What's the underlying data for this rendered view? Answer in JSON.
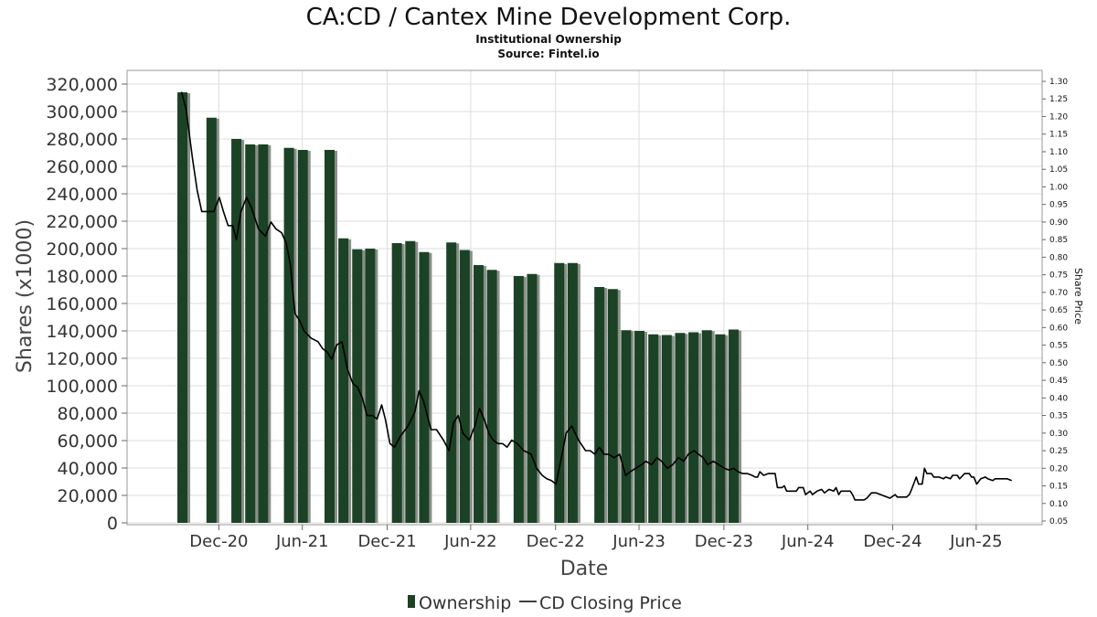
{
  "title": "CA:CD / Cantex Mine Development Corp.",
  "subtitle": "Institutional Ownership",
  "source": "Source: Fintel.io",
  "colors": {
    "bar": "#1c4226",
    "bar_shadow": "#8a8f89",
    "line": "#000000",
    "grid": "#dddddd"
  },
  "chart_data": {
    "type": "bar",
    "xlabel": "Date",
    "ylabel": "Shares (x1000)",
    "y2label": "Share Price",
    "ylim": [
      0,
      320000
    ],
    "y2lim": [
      0.05,
      1.3
    ],
    "xlim": [
      "2020-06-15",
      "2025-11-20"
    ],
    "yticks": [
      "0",
      "20,000",
      "40,000",
      "60,000",
      "80,000",
      "100,000",
      "120,000",
      "140,000",
      "160,000",
      "180,000",
      "200,000",
      "220,000",
      "240,000",
      "260,000",
      "280,000",
      "300,000",
      "320,000"
    ],
    "y2ticks": [
      "0.05",
      "0.10",
      "0.15",
      "0.20",
      "0.25",
      "0.30",
      "0.35",
      "0.40",
      "0.45",
      "0.50",
      "0.55",
      "0.60",
      "0.65",
      "0.70",
      "0.75",
      "0.80",
      "0.85",
      "0.90",
      "0.95",
      "1.00",
      "1.05",
      "1.10",
      "1.15",
      "1.20",
      "1.25",
      "1.30"
    ],
    "xticks": [
      {
        "label": "Dec-20",
        "date": "2020-12-31"
      },
      {
        "label": "Jun-21",
        "date": "2021-06-30"
      },
      {
        "label": "Dec-21",
        "date": "2021-12-31"
      },
      {
        "label": "Jun-22",
        "date": "2022-06-30"
      },
      {
        "label": "Dec-22",
        "date": "2022-12-31"
      },
      {
        "label": "Jun-23",
        "date": "2023-06-30"
      },
      {
        "label": "Dec-23",
        "date": "2023-12-31"
      },
      {
        "label": "Jun-24",
        "date": "2024-06-30"
      },
      {
        "label": "Dec-24",
        "date": "2024-12-31"
      },
      {
        "label": "Jun-25",
        "date": "2025-06-30"
      }
    ],
    "grid": true,
    "series": [
      {
        "name": "Ownership",
        "type": "bar",
        "points": [
          {
            "date": "2020-10-13",
            "value": 314000
          },
          {
            "date": "2020-12-15",
            "value": 295500
          },
          {
            "date": "2021-02-07",
            "value": 280000
          },
          {
            "date": "2021-03-09",
            "value": 276000
          },
          {
            "date": "2021-04-06",
            "value": 276000
          },
          {
            "date": "2021-06-01",
            "value": 273500
          },
          {
            "date": "2021-07-01",
            "value": 272000
          },
          {
            "date": "2021-08-28",
            "value": 272000
          },
          {
            "date": "2021-09-27",
            "value": 207500
          },
          {
            "date": "2021-10-27",
            "value": 199500
          },
          {
            "date": "2021-11-24",
            "value": 200000
          },
          {
            "date": "2022-01-21",
            "value": 204000
          },
          {
            "date": "2022-02-19",
            "value": 205500
          },
          {
            "date": "2022-03-21",
            "value": 197500
          },
          {
            "date": "2022-05-19",
            "value": 204500
          },
          {
            "date": "2022-06-17",
            "value": 199000
          },
          {
            "date": "2022-07-17",
            "value": 188000
          },
          {
            "date": "2022-08-15",
            "value": 184500
          },
          {
            "date": "2022-10-12",
            "value": 180000
          },
          {
            "date": "2022-11-10",
            "value": 181500
          },
          {
            "date": "2023-01-08",
            "value": 189500
          },
          {
            "date": "2023-02-06",
            "value": 189500
          },
          {
            "date": "2023-04-05",
            "value": 172000
          },
          {
            "date": "2023-05-04",
            "value": 170500
          },
          {
            "date": "2023-06-02",
            "value": 140500
          },
          {
            "date": "2023-07-01",
            "value": 140000
          },
          {
            "date": "2023-07-31",
            "value": 137500
          },
          {
            "date": "2023-08-29",
            "value": 137000
          },
          {
            "date": "2023-09-27",
            "value": 138500
          },
          {
            "date": "2023-10-26",
            "value": 139000
          },
          {
            "date": "2023-11-24",
            "value": 140500
          },
          {
            "date": "2023-12-23",
            "value": 137500
          },
          {
            "date": "2024-01-21",
            "value": 141000
          }
        ]
      },
      {
        "name": "CD Closing Price",
        "type": "line",
        "points": [
          [
            "2020-10-11",
            1.27
          ],
          [
            "2020-10-21",
            1.22
          ],
          [
            "2020-11-04",
            1.08
          ],
          [
            "2020-11-14",
            0.99
          ],
          [
            "2020-11-24",
            0.93
          ],
          [
            "2020-12-05",
            0.93
          ],
          [
            "2020-12-20",
            0.93
          ],
          [
            "2021-01-01",
            0.97
          ],
          [
            "2021-01-10",
            0.93
          ],
          [
            "2021-01-20",
            0.89
          ],
          [
            "2021-01-30",
            0.89
          ],
          [
            "2021-02-07",
            0.85
          ],
          [
            "2021-02-17",
            0.93
          ],
          [
            "2021-03-01",
            0.97
          ],
          [
            "2021-03-12",
            0.94
          ],
          [
            "2021-03-27",
            0.88
          ],
          [
            "2021-04-11",
            0.86
          ],
          [
            "2021-04-23",
            0.9
          ],
          [
            "2021-05-04",
            0.88
          ],
          [
            "2021-05-16",
            0.87
          ],
          [
            "2021-05-26",
            0.84
          ],
          [
            "2021-06-04",
            0.78
          ],
          [
            "2021-06-14",
            0.64
          ],
          [
            "2021-06-24",
            0.62
          ],
          [
            "2021-07-04",
            0.59
          ],
          [
            "2021-07-19",
            0.57
          ],
          [
            "2021-08-03",
            0.56
          ],
          [
            "2021-08-13",
            0.54
          ],
          [
            "2021-08-23",
            0.53
          ],
          [
            "2021-09-02",
            0.51
          ],
          [
            "2021-09-12",
            0.55
          ],
          [
            "2021-09-24",
            0.56
          ],
          [
            "2021-10-06",
            0.48
          ],
          [
            "2021-10-18",
            0.44
          ],
          [
            "2021-10-28",
            0.43
          ],
          [
            "2021-11-07",
            0.4
          ],
          [
            "2021-11-17",
            0.35
          ],
          [
            "2021-11-29",
            0.35
          ],
          [
            "2021-12-09",
            0.34
          ],
          [
            "2021-12-19",
            0.38
          ],
          [
            "2021-12-27",
            0.34
          ],
          [
            "2022-01-06",
            0.27
          ],
          [
            "2022-01-16",
            0.26
          ],
          [
            "2022-01-28",
            0.29
          ],
          [
            "2022-02-14",
            0.32
          ],
          [
            "2022-03-01",
            0.36
          ],
          [
            "2022-03-10",
            0.42
          ],
          [
            "2022-03-20",
            0.39
          ],
          [
            "2022-04-05",
            0.31
          ],
          [
            "2022-04-17",
            0.31
          ],
          [
            "2022-05-02",
            0.28
          ],
          [
            "2022-05-14",
            0.25
          ],
          [
            "2022-05-24",
            0.33
          ],
          [
            "2022-06-03",
            0.35
          ],
          [
            "2022-06-13",
            0.3
          ],
          [
            "2022-06-27",
            0.28
          ],
          [
            "2022-07-09",
            0.32
          ],
          [
            "2022-07-19",
            0.37
          ],
          [
            "2022-07-29",
            0.34
          ],
          [
            "2022-08-08",
            0.3
          ],
          [
            "2022-08-18",
            0.28
          ],
          [
            "2022-08-28",
            0.27
          ],
          [
            "2022-09-07",
            0.27
          ],
          [
            "2022-09-17",
            0.26
          ],
          [
            "2022-09-27",
            0.28
          ],
          [
            "2022-10-09",
            0.27
          ],
          [
            "2022-10-23",
            0.25
          ],
          [
            "2022-11-08",
            0.24
          ],
          [
            "2022-11-20",
            0.2
          ],
          [
            "2022-12-02",
            0.18
          ],
          [
            "2022-12-12",
            0.17
          ],
          [
            "2022-12-22",
            0.165
          ],
          [
            "2023-01-01",
            0.155
          ],
          [
            "2023-01-11",
            0.22
          ],
          [
            "2023-01-23",
            0.3
          ],
          [
            "2023-02-04",
            0.32
          ],
          [
            "2023-02-19",
            0.28
          ],
          [
            "2023-03-06",
            0.25
          ],
          [
            "2023-03-16",
            0.25
          ],
          [
            "2023-03-26",
            0.24
          ],
          [
            "2023-04-05",
            0.26
          ],
          [
            "2023-04-15",
            0.24
          ],
          [
            "2023-04-25",
            0.24
          ],
          [
            "2023-05-07",
            0.23
          ],
          [
            "2023-05-19",
            0.24
          ],
          [
            "2023-06-01",
            0.18
          ],
          [
            "2023-06-11",
            0.19
          ],
          [
            "2023-06-23",
            0.2
          ],
          [
            "2023-07-05",
            0.21
          ],
          [
            "2023-07-15",
            0.22
          ],
          [
            "2023-07-27",
            0.21
          ],
          [
            "2023-08-08",
            0.23
          ],
          [
            "2023-08-18",
            0.22
          ],
          [
            "2023-08-30",
            0.2
          ],
          [
            "2023-09-11",
            0.21
          ],
          [
            "2023-09-23",
            0.23
          ],
          [
            "2023-10-05",
            0.22
          ],
          [
            "2023-10-15",
            0.24
          ],
          [
            "2023-10-27",
            0.25
          ],
          [
            "2023-11-06",
            0.24
          ],
          [
            "2023-11-16",
            0.23
          ],
          [
            "2023-11-26",
            0.21
          ],
          [
            "2023-12-08",
            0.22
          ],
          [
            "2023-12-20",
            0.21
          ],
          [
            "2024-01-01",
            0.2
          ],
          [
            "2024-01-11",
            0.195
          ],
          [
            "2024-01-21",
            0.2
          ],
          [
            "2024-01-31",
            0.19
          ],
          [
            "2024-02-10",
            0.185
          ],
          [
            "2024-02-20",
            0.185
          ],
          [
            "2024-03-01",
            0.18
          ],
          [
            "2024-03-08",
            0.175
          ],
          [
            "2024-03-13",
            0.175
          ],
          [
            "2024-03-18",
            0.19
          ],
          [
            "2024-03-26",
            0.18
          ],
          [
            "2024-04-05",
            0.185
          ],
          [
            "2024-04-15",
            0.185
          ],
          [
            "2024-04-20",
            0.185
          ],
          [
            "2024-04-25",
            0.145
          ],
          [
            "2024-05-05",
            0.145
          ],
          [
            "2024-05-10",
            0.15
          ],
          [
            "2024-05-15",
            0.135
          ],
          [
            "2024-05-25",
            0.135
          ],
          [
            "2024-06-05",
            0.135
          ],
          [
            "2024-06-10",
            0.145
          ],
          [
            "2024-06-20",
            0.145
          ],
          [
            "2024-06-25",
            0.125
          ],
          [
            "2024-07-05",
            0.135
          ],
          [
            "2024-07-10",
            0.125
          ],
          [
            "2024-07-20",
            0.135
          ],
          [
            "2024-07-30",
            0.14
          ],
          [
            "2024-08-05",
            0.13
          ],
          [
            "2024-08-15",
            0.14
          ],
          [
            "2024-08-25",
            0.135
          ],
          [
            "2024-08-30",
            0.145
          ],
          [
            "2024-09-05",
            0.125
          ],
          [
            "2024-09-10",
            0.135
          ],
          [
            "2024-09-20",
            0.135
          ],
          [
            "2024-09-30",
            0.135
          ],
          [
            "2024-10-05",
            0.125
          ],
          [
            "2024-10-10",
            0.11
          ],
          [
            "2024-10-20",
            0.11
          ],
          [
            "2024-10-30",
            0.11
          ],
          [
            "2024-11-05",
            0.115
          ],
          [
            "2024-11-15",
            0.13
          ],
          [
            "2024-11-25",
            0.13
          ],
          [
            "2024-12-05",
            0.125
          ],
          [
            "2024-12-15",
            0.12
          ],
          [
            "2024-12-25",
            0.115
          ],
          [
            "2025-01-05",
            0.125
          ],
          [
            "2025-01-10",
            0.118
          ],
          [
            "2025-01-20",
            0.118
          ],
          [
            "2025-01-30",
            0.118
          ],
          [
            "2025-02-05",
            0.125
          ],
          [
            "2025-02-10",
            0.14
          ],
          [
            "2025-02-20",
            0.175
          ],
          [
            "2025-02-25",
            0.155
          ],
          [
            "2025-03-05",
            0.155
          ],
          [
            "2025-03-10",
            0.2
          ],
          [
            "2025-03-15",
            0.185
          ],
          [
            "2025-03-25",
            0.185
          ],
          [
            "2025-03-30",
            0.175
          ],
          [
            "2025-04-10",
            0.175
          ],
          [
            "2025-04-20",
            0.17
          ],
          [
            "2025-04-25",
            0.175
          ],
          [
            "2025-05-05",
            0.17
          ],
          [
            "2025-05-10",
            0.18
          ],
          [
            "2025-05-20",
            0.18
          ],
          [
            "2025-05-25",
            0.17
          ],
          [
            "2025-06-05",
            0.185
          ],
          [
            "2025-06-15",
            0.185
          ],
          [
            "2025-06-20",
            0.175
          ],
          [
            "2025-06-25",
            0.175
          ],
          [
            "2025-07-01",
            0.155
          ],
          [
            "2025-07-10",
            0.17
          ],
          [
            "2025-07-20",
            0.175
          ],
          [
            "2025-07-25",
            0.17
          ],
          [
            "2025-08-05",
            0.165
          ],
          [
            "2025-08-10",
            0.17
          ],
          [
            "2025-08-20",
            0.17
          ],
          [
            "2025-08-30",
            0.17
          ],
          [
            "2025-09-05",
            0.17
          ],
          [
            "2025-09-15",
            0.165
          ]
        ]
      }
    ]
  }
}
